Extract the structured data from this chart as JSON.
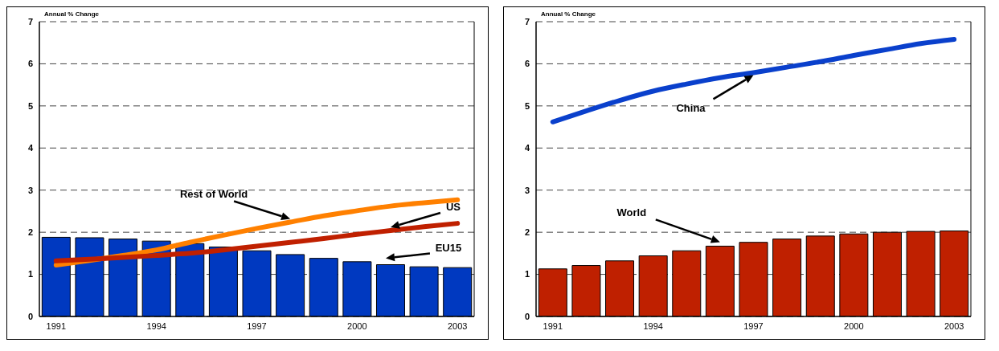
{
  "chart_data": [
    {
      "type": "bar",
      "ylabel": "Annual % Change",
      "categories": [
        "1991",
        null,
        null,
        "1994",
        null,
        null,
        "1997",
        null,
        null,
        "2000",
        null,
        null,
        "2003"
      ],
      "ylim": [
        0,
        7
      ],
      "yticks": [
        0,
        1,
        2,
        3,
        4,
        5,
        6,
        7
      ],
      "grid": "y",
      "legend": false,
      "marker": "none",
      "line_style": "solid",
      "series": [
        {
          "name": "EU15",
          "color": "#0039c0",
          "values": [
            1.88,
            1.87,
            1.84,
            1.79,
            1.73,
            1.65,
            1.56,
            1.47,
            1.38,
            1.3,
            1.23,
            1.18,
            1.16
          ]
        },
        {
          "name": "Rest of World",
          "type": "line",
          "color": "#ff8000",
          "values": [
            1.22,
            1.33,
            1.45,
            1.58,
            1.76,
            1.93,
            2.09,
            2.24,
            2.39,
            2.51,
            2.62,
            2.7,
            2.77
          ]
        },
        {
          "name": "US",
          "type": "line",
          "color": "#c02000",
          "values": [
            1.32,
            1.36,
            1.4,
            1.45,
            1.5,
            1.58,
            1.67,
            1.76,
            1.85,
            1.95,
            2.04,
            2.13,
            2.21
          ]
        }
      ]
    },
    {
      "type": "bar",
      "ylabel": "Annual % Change",
      "categories": [
        "1991",
        null,
        null,
        "1994",
        null,
        null,
        "1997",
        null,
        null,
        "2000",
        null,
        null,
        "2003"
      ],
      "ylim": [
        0,
        7
      ],
      "yticks": [
        0,
        1,
        2,
        3,
        4,
        5,
        6,
        7
      ],
      "grid": "y",
      "legend": false,
      "marker": "none",
      "line_style": "solid",
      "series": [
        {
          "name": "World",
          "color": "#bf2000",
          "values": [
            1.13,
            1.21,
            1.32,
            1.44,
            1.56,
            1.67,
            1.76,
            1.84,
            1.91,
            1.96,
            2.0,
            2.02,
            2.03
          ]
        },
        {
          "name": "China",
          "type": "line",
          "color": "#0a40cc",
          "values": [
            4.62,
            4.88,
            5.13,
            5.35,
            5.52,
            5.67,
            5.79,
            5.92,
            6.05,
            6.2,
            6.34,
            6.48,
            6.58
          ]
        }
      ]
    }
  ]
}
